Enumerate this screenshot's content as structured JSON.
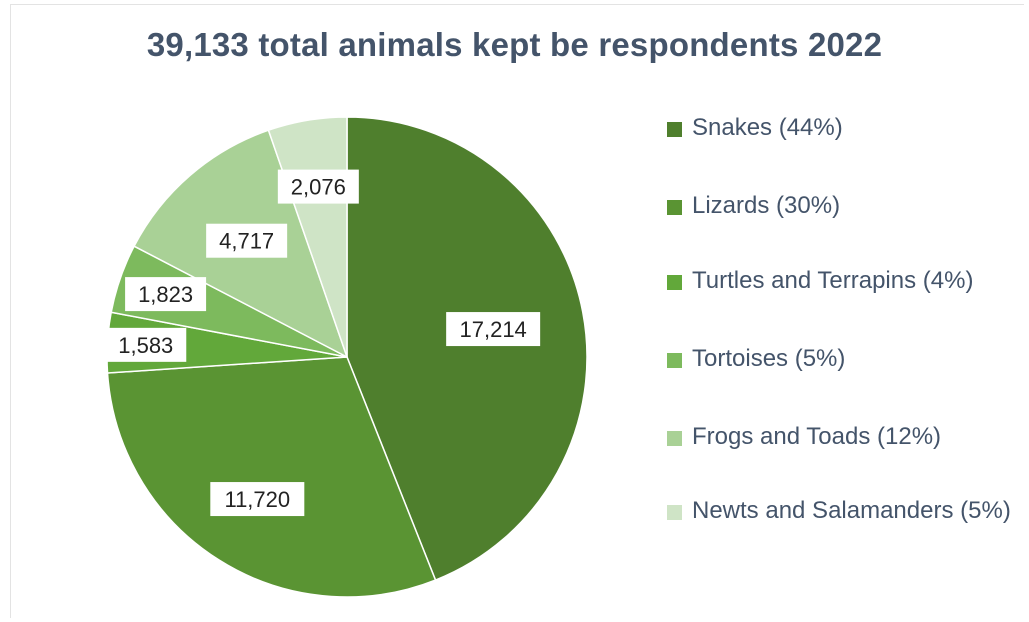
{
  "chart_data": {
    "type": "pie",
    "title": "39,133 total animals kept be respondents 2022",
    "categories": [
      "Snakes",
      "Lizards",
      "Turtles and Terrapins",
      "Tortoises",
      "Frogs and Toads",
      "Newts and Salamanders"
    ],
    "values": [
      17214,
      11720,
      1583,
      1823,
      4717,
      2076
    ],
    "data_labels": [
      "17,214",
      "11,720",
      "1,583",
      "1,823",
      "4,717",
      "2,076"
    ],
    "legend": [
      "Snakes (44%)",
      "Lizards (30%)",
      "Turtles and Terrapins (4%)",
      "Tortoises (5%)",
      "Frogs and Toads (12%)",
      "Newts and Salamanders (5%)"
    ],
    "legend_position": "right",
    "colors": [
      "#4f7f2d",
      "#5a9433",
      "#62a83a",
      "#7dba5d",
      "#a9d196",
      "#cfe4c6"
    ]
  }
}
